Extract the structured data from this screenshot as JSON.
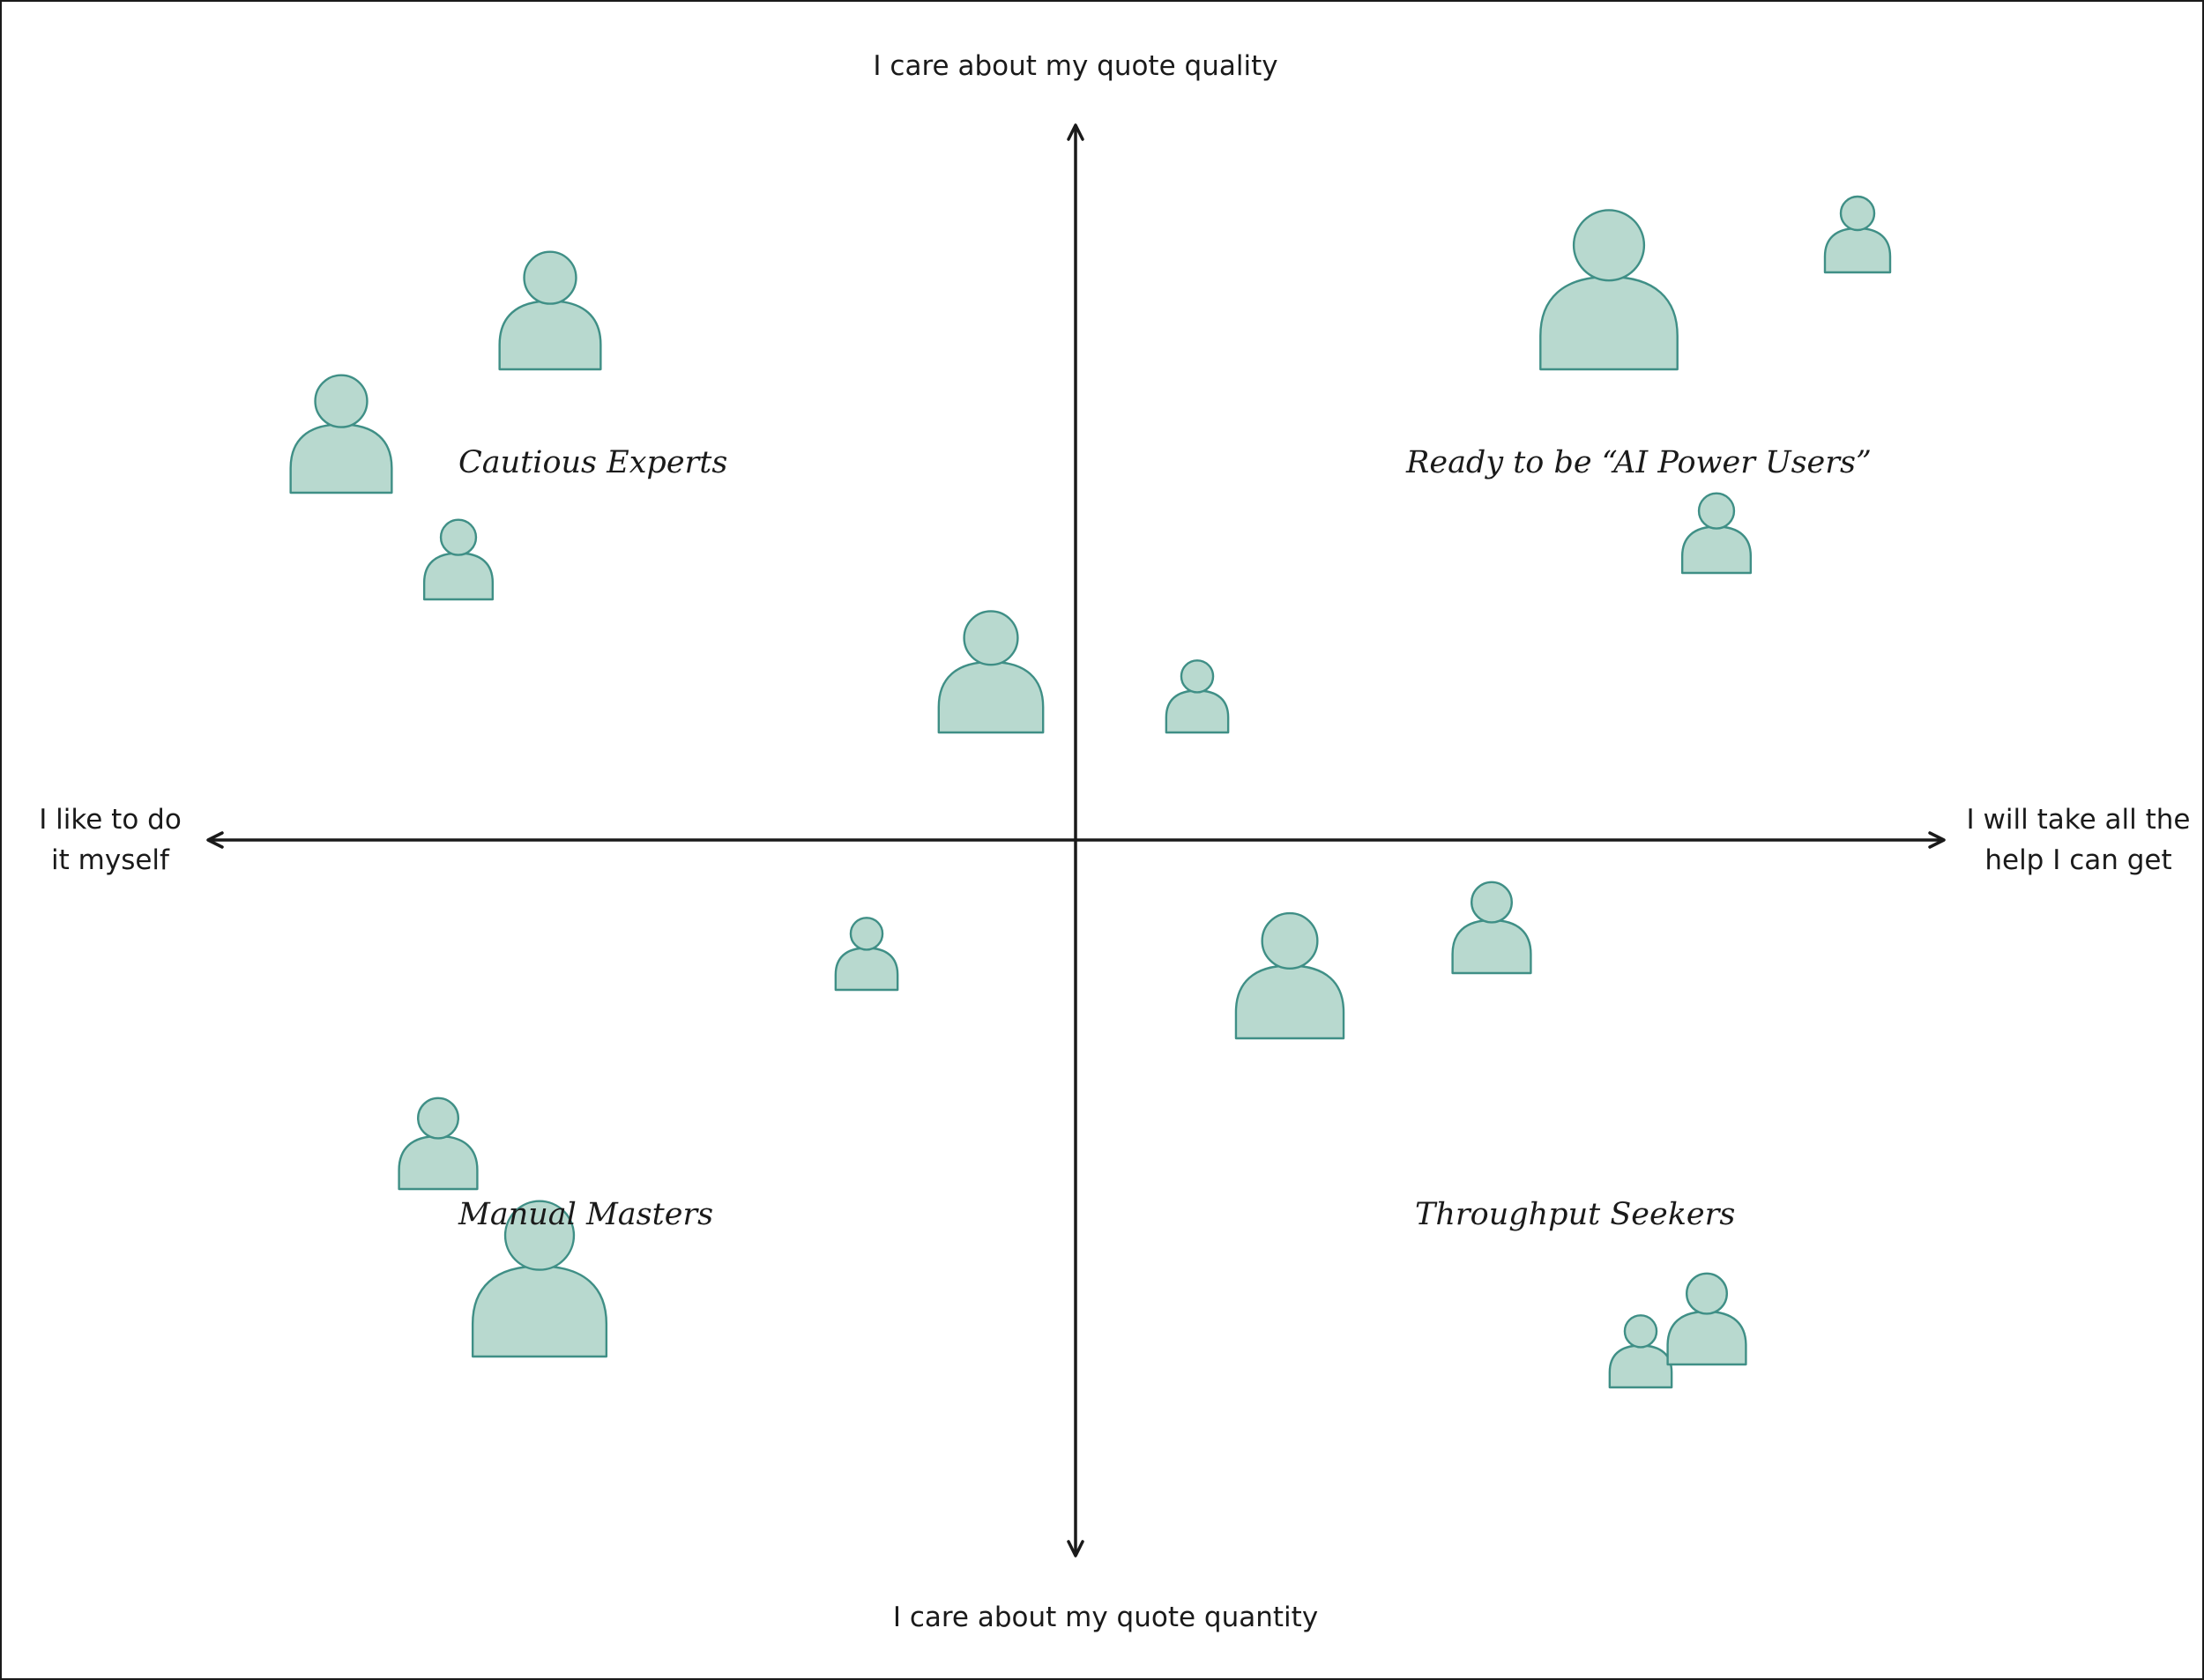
{
  "axes": {
    "top": "I care about my quote quality",
    "bottom": "I care about my quote quantity",
    "left_line1": "I like to do",
    "left_line2": "it myself",
    "right_line1": "I will take all the",
    "right_line2": "help I can get"
  },
  "quadrants": {
    "top_left": "Cautious Experts",
    "top_right": "Ready to be “AI Power Users”",
    "bottom_left": "Manual Masters",
    "bottom_right": "Throughput Seekers"
  },
  "colors": {
    "line": "#1a1a1a",
    "person_fill": "#b8d9cf",
    "person_stroke": "#3f8f86"
  }
}
